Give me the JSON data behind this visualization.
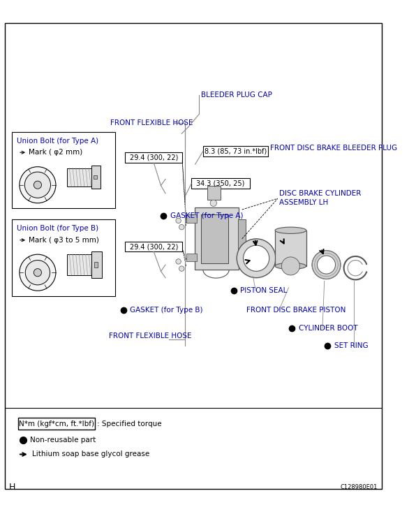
{
  "bg_color": "#ffffff",
  "border_color": "#000000",
  "text_color": "#000000",
  "blue_color": "#0000bb",
  "gray_color": "#888888",
  "figsize": [
    5.96,
    7.33
  ],
  "dpi": 100,
  "labels": {
    "bleeder_plug_cap": "BLEEDER PLUG CAP",
    "front_flexible_hose_top": "FRONT FLEXIBLE HOSE",
    "front_disc_brake_bleeder_plug": "FRONT DISC BRAKE BLEEDER PLUG",
    "torque1": "8.3 (85, 73 in.*lbf)",
    "torque2": "34.3 (350, 25)",
    "torque3": "29.4 (300, 22)",
    "torque4": "29.4 (300, 22)",
    "disc_brake_cylinder": "DISC BRAKE CYLINDER\nASSEMBLY LH",
    "union_bolt_A": "Union Bolt (for Type A)",
    "mark_A": "Mark ( φ2 mm)",
    "gasket_A": "GASKET (for Type A)",
    "union_bolt_B": "Union Bolt (for Type B)",
    "mark_B": "Mark ( φ3 to 5 mm)",
    "gasket_B": "GASKET (for Type B)",
    "front_flexible_hose_bot": "FRONT FLEXIBLE HOSE",
    "piston_seal": "PISTON SEAL",
    "front_disc_brake_piston": "FRONT DISC BRAKE PISTON",
    "cylinder_boot": "CYLINDER BOOT",
    "set_ring": "SET RING",
    "legend_torque": "N*m (kgf*cm, ft.*lbf)",
    "legend_torque_desc": ": Specified torque",
    "legend_non_reusable": "Non-reusable part",
    "legend_grease": "Lithium soap base glycol grease",
    "page_letter": "H",
    "doc_number": "C128980E01"
  }
}
